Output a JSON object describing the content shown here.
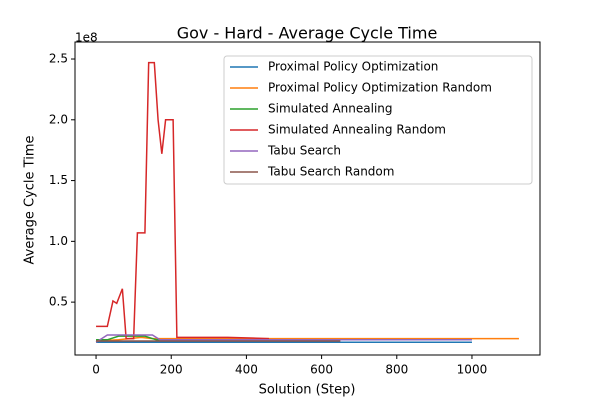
{
  "chart_data": {
    "type": "line",
    "title": "Gov - Hard - Average Cycle Time",
    "x_label": "Solution (Step)",
    "y_label": "Average Cycle Time",
    "y_offset_label": "1e8",
    "xlim": [
      -56,
      1181
    ],
    "ylim": [
      0.065,
      2.64
    ],
    "xticks": [
      0,
      200,
      400,
      600,
      800,
      1000
    ],
    "yticks": [
      0.5,
      {
        "value": 1.0,
        "label": "1.0"
      },
      1.5,
      {
        "value": 2.0,
        "label": "2.0"
      },
      2.5
    ],
    "legend": "upper right",
    "series": [
      {
        "name": "Proximal Policy Optimization",
        "color": "#1f77b4",
        "x": [
          0,
          100,
          200,
          400,
          600,
          800,
          1000
        ],
        "values": [
          0.17,
          0.17,
          0.17,
          0.17,
          0.17,
          0.17,
          0.17
        ]
      },
      {
        "name": "Proximal Policy Optimization Random",
        "color": "#ff7f0e",
        "x": [
          0,
          60,
          120,
          150,
          300,
          500,
          800,
          1000,
          1125
        ],
        "values": [
          0.18,
          0.19,
          0.21,
          0.2,
          0.2,
          0.2,
          0.2,
          0.2,
          0.2
        ]
      },
      {
        "name": "Simulated Annealing",
        "color": "#2ca02c",
        "x": [
          0,
          30,
          60,
          130,
          160,
          300,
          460
        ],
        "values": [
          0.19,
          0.19,
          0.22,
          0.22,
          0.19,
          0.19,
          0.19
        ]
      },
      {
        "name": "Simulated Annealing Random",
        "color": "#d62728",
        "x": [
          0,
          30,
          45,
          55,
          70,
          80,
          100,
          110,
          130,
          140,
          155,
          165,
          175,
          185,
          205,
          215,
          350,
          460
        ],
        "values": [
          0.3,
          0.3,
          0.51,
          0.49,
          0.61,
          0.2,
          0.2,
          1.07,
          1.07,
          2.47,
          2.47,
          2.0,
          1.72,
          2.0,
          2.0,
          0.21,
          0.21,
          0.2
        ]
      },
      {
        "name": "Tabu Search",
        "color": "#9467bd",
        "x": [
          0,
          30,
          150,
          170,
          400,
          700,
          1000
        ],
        "values": [
          0.17,
          0.23,
          0.23,
          0.19,
          0.19,
          0.19,
          0.19
        ]
      },
      {
        "name": "Tabu Search Random",
        "color": "#8c564b",
        "x": [
          0,
          50,
          200,
          400,
          650
        ],
        "values": [
          0.18,
          0.18,
          0.18,
          0.18,
          0.18
        ]
      }
    ]
  }
}
